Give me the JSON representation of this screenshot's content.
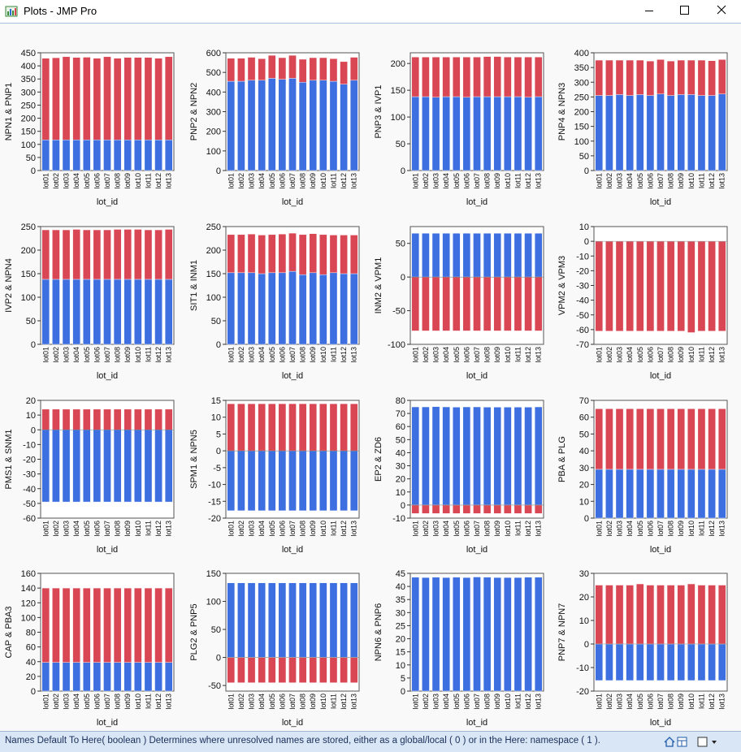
{
  "window": {
    "title": "Plots - JMP Pro",
    "app_icon": "jmp-graph-icon",
    "controls": [
      "minimize-icon",
      "maximize-icon",
      "close-icon"
    ]
  },
  "status_bar": {
    "text": "Names Default To Here( boolean )  Determines where unresolved names are stored, either as a global/local ( 0 ) or in the Here: namespace ( 1 ).",
    "icons": [
      "home-icon",
      "layout-icon",
      "checkbox-icon",
      "dropdown-arrow-icon"
    ]
  },
  "colors": {
    "series_a": "#3d6fe0",
    "series_b": "#d94755",
    "bar_outline": "#ffffff"
  },
  "chart_data": [
    {
      "type": "bar",
      "stacked": true,
      "xlabel": "lot_id",
      "ylabel": "NPN1 & PNP1",
      "ylim": [
        0,
        450
      ],
      "yticks": [
        0,
        50,
        100,
        150,
        200,
        250,
        300,
        350,
        400,
        450
      ],
      "categories": [
        "lot01",
        "lot02",
        "lot03",
        "lot04",
        "lot05",
        "lot06",
        "lot07",
        "lot08",
        "lot09",
        "lot10",
        "lot11",
        "lot12",
        "lot13"
      ],
      "series": [
        {
          "values": [
            117,
            117,
            117,
            117,
            117,
            117,
            117,
            117,
            117,
            117,
            117,
            117,
            117
          ]
        },
        {
          "values": [
            312,
            314,
            318,
            315,
            316,
            312,
            318,
            312,
            315,
            315,
            315,
            312,
            318
          ]
        }
      ]
    },
    {
      "type": "bar",
      "stacked": true,
      "xlabel": "lot_id",
      "ylabel": "PNP2 & NPN2",
      "ylim": [
        0,
        600
      ],
      "yticks": [
        0,
        100,
        200,
        300,
        400,
        500,
        600
      ],
      "categories": [
        "lot01",
        "lot02",
        "lot03",
        "lot04",
        "lot05",
        "lot06",
        "lot07",
        "lot08",
        "lot09",
        "lot10",
        "lot11",
        "lot12",
        "lot13"
      ],
      "series": [
        {
          "values": [
            455,
            455,
            460,
            460,
            470,
            465,
            470,
            450,
            460,
            460,
            455,
            440,
            460
          ]
        },
        {
          "values": [
            117,
            117,
            117,
            110,
            117,
            110,
            117,
            117,
            115,
            115,
            115,
            115,
            117
          ]
        }
      ]
    },
    {
      "type": "bar",
      "stacked": true,
      "xlabel": "lot_id",
      "ylabel": "PNP3 & IVP1",
      "ylim": [
        0,
        220
      ],
      "yticks": [
        0,
        50,
        100,
        150,
        200
      ],
      "categories": [
        "lot01",
        "lot02",
        "lot03",
        "lot04",
        "lot05",
        "lot06",
        "lot07",
        "lot08",
        "lot09",
        "lot10",
        "lot11",
        "lot12",
        "lot13"
      ],
      "series": [
        {
          "values": [
            138,
            138,
            137,
            138,
            138,
            137,
            138,
            138,
            138,
            138,
            138,
            137,
            138
          ]
        },
        {
          "values": [
            74,
            74,
            75,
            74,
            74,
            75,
            74,
            75,
            75,
            74,
            74,
            75,
            74
          ]
        }
      ]
    },
    {
      "type": "bar",
      "stacked": true,
      "xlabel": "lot_id",
      "ylabel": "PNP4 & NPN3",
      "ylim": [
        0,
        400
      ],
      "yticks": [
        0,
        50,
        100,
        150,
        200,
        250,
        300,
        350,
        400
      ],
      "categories": [
        "lot01",
        "lot02",
        "lot03",
        "lot04",
        "lot05",
        "lot06",
        "lot07",
        "lot08",
        "lot09",
        "lot10",
        "lot11",
        "lot12",
        "lot13"
      ],
      "series": [
        {
          "values": [
            255,
            255,
            258,
            255,
            258,
            255,
            260,
            255,
            258,
            258,
            255,
            255,
            260
          ]
        },
        {
          "values": [
            120,
            120,
            117,
            120,
            117,
            117,
            117,
            117,
            117,
            117,
            120,
            118,
            117
          ]
        }
      ]
    },
    {
      "type": "bar",
      "stacked": true,
      "xlabel": "lot_id",
      "ylabel": "IVP2 & NPN4",
      "ylim": [
        0,
        250
      ],
      "yticks": [
        0,
        50,
        100,
        150,
        200,
        250
      ],
      "categories": [
        "lot01",
        "lot02",
        "lot03",
        "lot04",
        "lot05",
        "lot06",
        "lot07",
        "lot08",
        "lot09",
        "lot10",
        "lot11",
        "lot12",
        "lot13"
      ],
      "series": [
        {
          "values": [
            138,
            138,
            138,
            138,
            138,
            138,
            138,
            138,
            138,
            138,
            138,
            138,
            138
          ]
        },
        {
          "values": [
            105,
            105,
            105,
            106,
            105,
            105,
            105,
            106,
            106,
            106,
            105,
            105,
            106
          ]
        }
      ]
    },
    {
      "type": "bar",
      "stacked": true,
      "xlabel": "lot_id",
      "ylabel": "SIT1 & INM1",
      "ylim": [
        0,
        250
      ],
      "yticks": [
        0,
        50,
        100,
        150,
        200,
        250
      ],
      "categories": [
        "lot01",
        "lot02",
        "lot03",
        "lot04",
        "lot05",
        "lot06",
        "lot07",
        "lot08",
        "lot09",
        "lot10",
        "lot11",
        "lot12",
        "lot13"
      ],
      "series": [
        {
          "values": [
            152,
            152,
            152,
            150,
            152,
            152,
            155,
            148,
            152,
            148,
            152,
            150,
            150
          ]
        },
        {
          "values": [
            81,
            81,
            82,
            82,
            81,
            82,
            81,
            85,
            83,
            85,
            80,
            82,
            82
          ]
        }
      ]
    },
    {
      "type": "bar",
      "stacked": true,
      "xlabel": "lot_id",
      "ylabel": "INM2 & VPM1",
      "ylim": [
        -100,
        75
      ],
      "yticks": [
        -100,
        -50,
        0,
        50
      ],
      "categories": [
        "lot01",
        "lot02",
        "lot03",
        "lot04",
        "lot05",
        "lot06",
        "lot07",
        "lot08",
        "lot09",
        "lot10",
        "lot11",
        "lot12",
        "lot13"
      ],
      "series": [
        {
          "values": [
            65,
            65,
            65,
            65,
            65,
            65,
            65,
            65,
            65,
            65,
            65,
            65,
            65
          ]
        },
        {
          "values": [
            -80,
            -80,
            -80,
            -80,
            -80,
            -80,
            -80,
            -80,
            -80,
            -80,
            -80,
            -80,
            -80
          ]
        }
      ]
    },
    {
      "type": "bar",
      "stacked": true,
      "xlabel": "lot_id",
      "ylabel": "VPM2 & VPM3",
      "ylim": [
        -70,
        10
      ],
      "yticks": [
        -70,
        -60,
        -50,
        -40,
        -30,
        -20,
        -10,
        0,
        10
      ],
      "categories": [
        "lot01",
        "lot02",
        "lot03",
        "lot04",
        "lot05",
        "lot06",
        "lot07",
        "lot08",
        "lot09",
        "lot10",
        "lot11",
        "lot12",
        "lot13"
      ],
      "series": [
        {
          "values": [
            -61,
            -61,
            -61,
            -61,
            -61,
            -61,
            -61,
            -61,
            -61,
            -62,
            -61,
            -61,
            -61
          ]
        }
      ]
    },
    {
      "type": "bar",
      "stacked": true,
      "xlabel": "lot_id",
      "ylabel": "PMS1 & SNM1",
      "ylim": [
        -60,
        20
      ],
      "yticks": [
        -60,
        -50,
        -40,
        -30,
        -20,
        -10,
        0,
        10,
        20
      ],
      "categories": [
        "lot01",
        "lot02",
        "lot03",
        "lot04",
        "lot05",
        "lot06",
        "lot07",
        "lot08",
        "lot09",
        "lot10",
        "lot11",
        "lot12",
        "lot13"
      ],
      "series": [
        {
          "values": [
            -49,
            -49,
            -49,
            -49,
            -49,
            -49,
            -49,
            -49,
            -49,
            -49,
            -49,
            -49,
            -49
          ]
        },
        {
          "values": [
            14,
            14,
            14,
            14,
            14,
            14,
            14,
            14,
            14,
            14,
            14,
            14,
            14
          ]
        }
      ]
    },
    {
      "type": "bar",
      "stacked": true,
      "xlabel": "lot_id",
      "ylabel": "SPM1 & NPN5",
      "ylim": [
        -20,
        15
      ],
      "yticks": [
        -20,
        -15,
        -10,
        -5,
        0,
        5,
        10,
        15
      ],
      "categories": [
        "lot01",
        "lot02",
        "lot03",
        "lot04",
        "lot05",
        "lot06",
        "lot07",
        "lot08",
        "lot09",
        "lot10",
        "lot11",
        "lot12",
        "lot13"
      ],
      "series": [
        {
          "values": [
            -17.8,
            -17.8,
            -17.8,
            -17.8,
            -17.8,
            -17.8,
            -17.8,
            -17.8,
            -17.8,
            -17.8,
            -17.8,
            -17.8,
            -17.8
          ]
        },
        {
          "values": [
            14,
            14,
            14,
            14,
            14,
            14,
            14,
            14,
            14,
            14,
            14,
            14,
            14
          ]
        }
      ]
    },
    {
      "type": "bar",
      "stacked": true,
      "xlabel": "lot_id",
      "ylabel": "EP2 & ZD6",
      "ylim": [
        -10,
        80
      ],
      "yticks": [
        -10,
        0,
        10,
        20,
        30,
        40,
        50,
        60,
        70,
        80
      ],
      "categories": [
        "lot01",
        "lot02",
        "lot03",
        "lot04",
        "lot05",
        "lot06",
        "lot07",
        "lot08",
        "lot09",
        "lot10",
        "lot11",
        "lot12",
        "lot13"
      ],
      "series": [
        {
          "values": [
            75,
            75,
            75.2,
            75,
            74.8,
            75,
            75,
            74.8,
            74.8,
            74.8,
            74.8,
            74.8,
            75
          ]
        },
        {
          "values": [
            -6.5,
            -6.5,
            -6.5,
            -6.5,
            -6.5,
            -6.5,
            -6.5,
            -6.5,
            -6.5,
            -6.5,
            -6.5,
            -6.5,
            -6.5
          ]
        }
      ]
    },
    {
      "type": "bar",
      "stacked": true,
      "xlabel": "lot_id",
      "ylabel": "PBA & PLG",
      "ylim": [
        0,
        70
      ],
      "yticks": [
        0,
        10,
        20,
        30,
        40,
        50,
        60,
        70
      ],
      "categories": [
        "lot01",
        "lot02",
        "lot03",
        "lot04",
        "lot05",
        "lot06",
        "lot07",
        "lot08",
        "lot09",
        "lot10",
        "lot11",
        "lot12",
        "lot13"
      ],
      "series": [
        {
          "values": [
            29,
            29,
            29,
            29,
            29,
            29,
            29,
            29,
            29,
            29,
            29,
            29,
            29
          ]
        },
        {
          "values": [
            36,
            36,
            36,
            36,
            36,
            36,
            36,
            36,
            36,
            36,
            36,
            36,
            36
          ]
        }
      ]
    },
    {
      "type": "bar",
      "stacked": true,
      "xlabel": "lot_id",
      "ylabel": "CAP & PBA3",
      "ylim": [
        0,
        160
      ],
      "yticks": [
        0,
        20,
        40,
        60,
        80,
        100,
        120,
        140,
        160
      ],
      "categories": [
        "lot01",
        "lot02",
        "lot03",
        "lot04",
        "lot05",
        "lot06",
        "lot07",
        "lot08",
        "lot09",
        "lot10",
        "lot11",
        "lot12",
        "lot13"
      ],
      "series": [
        {
          "values": [
            39,
            39,
            39,
            39,
            39,
            39,
            39,
            39,
            39,
            39,
            39,
            39,
            39
          ]
        },
        {
          "values": [
            101,
            101,
            101,
            101,
            101,
            101,
            101,
            101,
            101,
            101,
            101,
            101,
            101
          ]
        }
      ]
    },
    {
      "type": "bar",
      "stacked": true,
      "xlabel": "lot_id",
      "ylabel": "PLG2 & PNP5",
      "ylim": [
        -60,
        150
      ],
      "yticks": [
        -50,
        0,
        50,
        100,
        150
      ],
      "categories": [
        "lot01",
        "lot02",
        "lot03",
        "lot04",
        "lot05",
        "lot06",
        "lot07",
        "lot08",
        "lot09",
        "lot10",
        "lot11",
        "lot12",
        "lot13"
      ],
      "series": [
        {
          "values": [
            133,
            133,
            133,
            133,
            133,
            133,
            133,
            133,
            133,
            133,
            133,
            133,
            133
          ]
        },
        {
          "values": [
            -45,
            -45,
            -45,
            -45,
            -45,
            -45,
            -45,
            -45,
            -45,
            -45,
            -45,
            -45,
            -45
          ]
        }
      ]
    },
    {
      "type": "bar",
      "stacked": true,
      "xlabel": "lot_id",
      "ylabel": "NPN6 & PNP6",
      "ylim": [
        0,
        45
      ],
      "yticks": [
        0,
        5,
        10,
        15,
        20,
        25,
        30,
        35,
        40,
        45
      ],
      "categories": [
        "lot01",
        "lot02",
        "lot03",
        "lot04",
        "lot05",
        "lot06",
        "lot07",
        "lot08",
        "lot09",
        "lot10",
        "lot11",
        "lot12",
        "lot13"
      ],
      "series": [
        {
          "values": [
            43.5,
            43.4,
            43.5,
            43.4,
            43.5,
            43.4,
            43.6,
            43.5,
            43.4,
            43.4,
            43.4,
            43.5,
            43.5
          ]
        }
      ]
    },
    {
      "type": "bar",
      "stacked": true,
      "xlabel": "lot_id",
      "ylabel": "PNP7 & NPN7",
      "ylim": [
        -20,
        30
      ],
      "yticks": [
        -20,
        -10,
        0,
        10,
        20,
        30
      ],
      "categories": [
        "lot01",
        "lot02",
        "lot03",
        "lot04",
        "lot05",
        "lot06",
        "lot07",
        "lot08",
        "lot09",
        "lot10",
        "lot11",
        "lot12",
        "lot13"
      ],
      "series": [
        {
          "values": [
            -15.5,
            -15.5,
            -15.5,
            -15.5,
            -15.5,
            -15.5,
            -15.5,
            -15.5,
            -15.5,
            -15.5,
            -15.5,
            -15.5,
            -15.5
          ]
        },
        {
          "values": [
            25,
            25,
            25,
            25,
            25.5,
            25,
            25,
            25,
            25,
            25.5,
            25,
            25,
            25
          ]
        }
      ]
    }
  ]
}
